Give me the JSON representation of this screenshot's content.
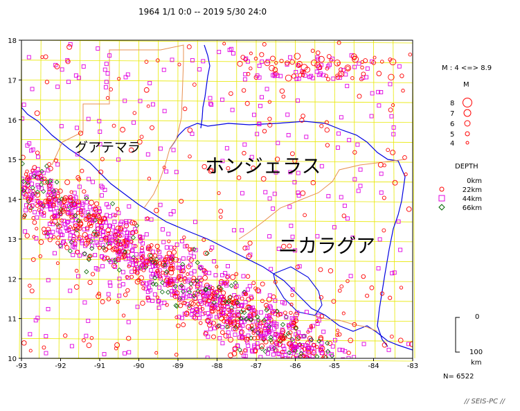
{
  "header": {
    "period": "1964 1/1 0:0 -- 2019 5/30 24:0"
  },
  "map": {
    "lon_range": [
      -93,
      -83
    ],
    "lat_range": [
      10,
      18
    ],
    "x_ticks": [
      "-93",
      "-92",
      "-91",
      "-90",
      "-89",
      "-88",
      "-87",
      "-86",
      "-85",
      "-84",
      "-83"
    ],
    "y_ticks": [
      "10",
      "11",
      "12",
      "13",
      "14",
      "15",
      "16",
      "17",
      "18"
    ],
    "country_labels": {
      "guatemala": "グアテマラ",
      "honduras": "ホンジェラス",
      "nicaragua": "ニカラグア"
    },
    "colors": {
      "grid": "#e8e800",
      "coast": "#0000e0",
      "border": "#e89050",
      "shallow": "#ff0000",
      "mid": "#e000e0",
      "deep": "#006400"
    }
  },
  "legend": {
    "magnitude_range": "M : 4 <=> 8.9",
    "magnitude_title": "M",
    "magnitudes": [
      "8",
      "7",
      "6",
      "5",
      "4"
    ],
    "depth_title": "DEPTH",
    "depths": [
      "0km",
      "22km",
      "44km",
      "66km"
    ],
    "depth_scale": {
      "top": "0",
      "bottom": "100",
      "unit": "km"
    },
    "count": "N= 6522"
  },
  "credit": "// SEIS-PC //"
}
